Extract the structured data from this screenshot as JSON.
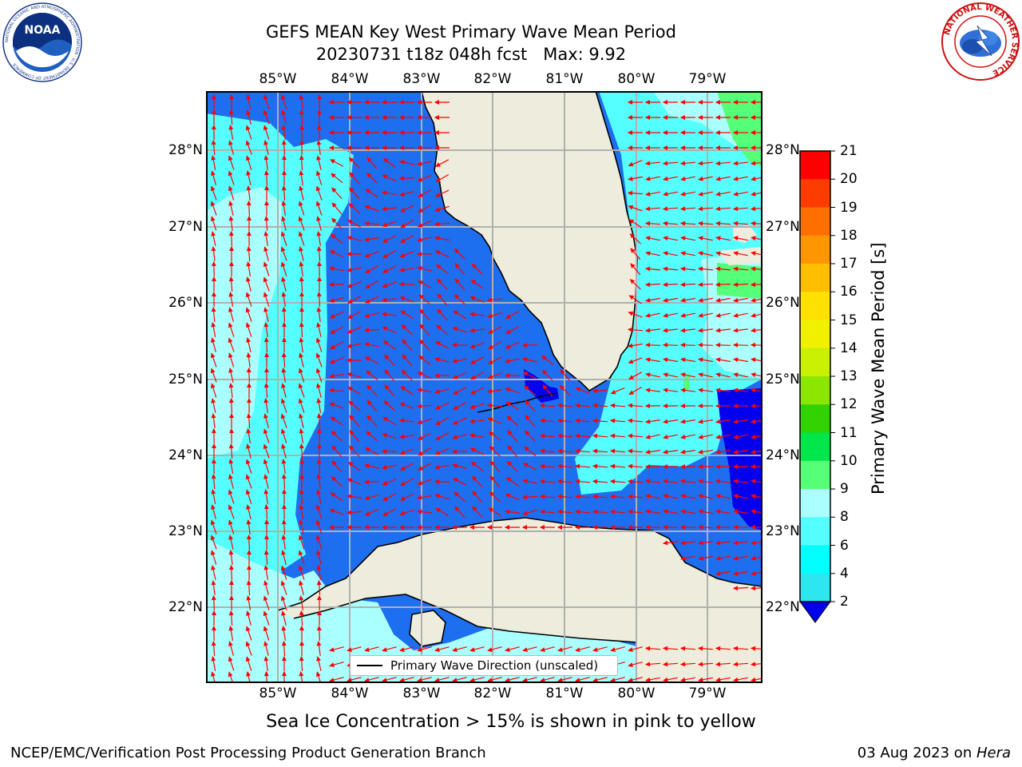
{
  "header": {
    "title_line1": "GEFS MEAN Key West Primary Wave Mean Period",
    "title_line2": "20230731 t18z 048h fcst   Max: 9.92"
  },
  "logos": {
    "left": {
      "icon": "noaa-logo",
      "text": "NOAA",
      "ring_text": "NATIONAL OCEANIC AND ATMOSPHERIC ADMINISTRATION · U.S. DEPARTMENT OF COMMERCE"
    },
    "right": {
      "icon": "national-weather-service-logo",
      "ring_text": "NATIONAL WEATHER SERVICE"
    }
  },
  "map": {
    "lon_ticks": [
      "85°W",
      "84°W",
      "83°W",
      "82°W",
      "81°W",
      "80°W",
      "79°W"
    ],
    "lat_ticks": [
      "28°N",
      "27°N",
      "26°N",
      "25°N",
      "24°N",
      "23°N",
      "22°N"
    ],
    "legend_label": "Primary Wave Direction (unscaled)",
    "colors": {
      "land": "#eeecdc",
      "arrows": "#ff0000",
      "grid": "#b0b0b0",
      "coast": "#000000"
    }
  },
  "colorbar": {
    "label": "Primary Wave Mean Period [s]",
    "ticks": [
      "2",
      "4",
      "6",
      "8",
      "9",
      "10",
      "11",
      "12",
      "13",
      "14",
      "15",
      "16",
      "17",
      "18",
      "19",
      "20",
      "21"
    ],
    "colors": [
      "#1e6ef0",
      "#2de6f0",
      "#00ffff",
      "#55ffff",
      "#aaffff",
      "#55ff78",
      "#00e64b",
      "#32d200",
      "#8ce600",
      "#c8f000",
      "#f0f000",
      "#ffe100",
      "#ffbe00",
      "#ff9600",
      "#ff6e00",
      "#ff3c00",
      "#ff0000"
    ],
    "underflow_color": "#0000ee"
  },
  "field_colors": {
    "p2_4": "#1e6ef0",
    "p4_6": "#2de6f0",
    "p6_8": "#55ffff",
    "p8_9": "#aaffff",
    "p9_10": "#55ff78",
    "under2": "#0000ee"
  },
  "notes": {
    "sea_ice": "Sea Ice Concentration > 15% is shown in pink to yellow"
  },
  "footer": {
    "left": "NCEP/EMC/Verification Post Processing Product Generation Branch",
    "right_prefix": "03 Aug 2023 on ",
    "right_machine": "Hera"
  }
}
